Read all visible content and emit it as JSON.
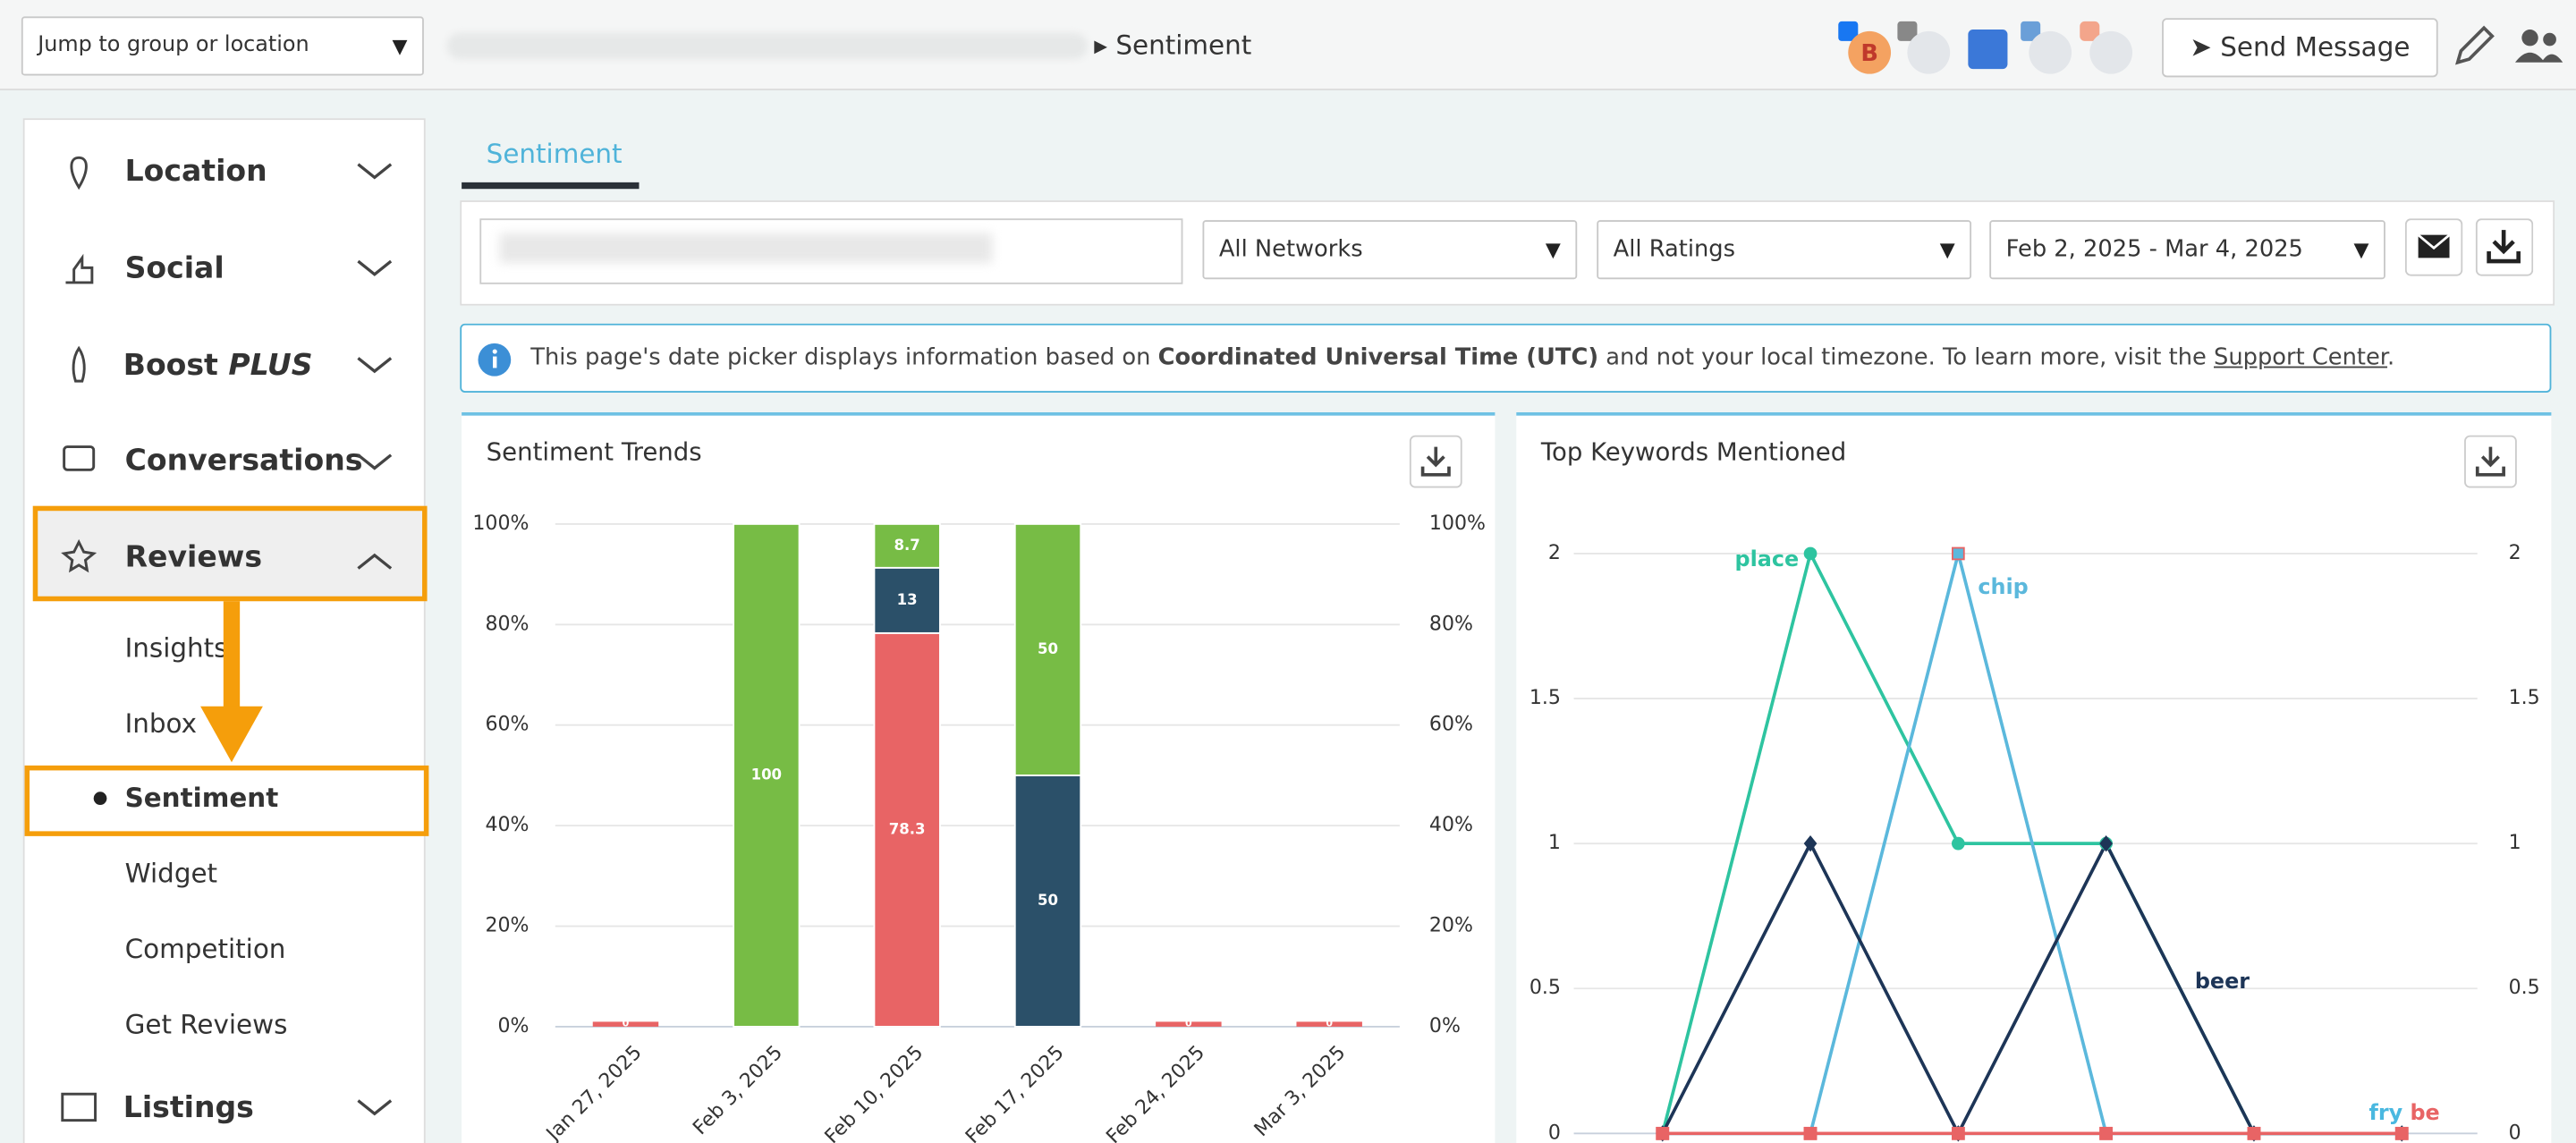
{
  "topbar": {
    "jump": "Jump to group or location",
    "breadcrumb": "Sentiment",
    "avatar": "B",
    "send": "Send Message"
  },
  "sidebar": {
    "items": [
      "Location",
      "Social",
      "Conversations",
      "Reviews",
      "Listings"
    ],
    "boost": "Boost",
    "boost_plus": "PLUS",
    "subitems": [
      "Insights",
      "Inbox",
      "Sentiment",
      "Widget",
      "Competition",
      "Get Reviews"
    ]
  },
  "tab": "Sentiment",
  "filters": {
    "networks": "All Networks",
    "ratings": "All Ratings",
    "dates": "Feb 2, 2025 - Mar 4, 2025"
  },
  "info": {
    "part1": "This page's date picker displays information based on ",
    "bold": "Coordinated Universal Time (UTC)",
    "part2": " and not your local timezone. To learn more, visit the ",
    "link": "Support Center",
    "part3": "."
  },
  "chart_data": [
    {
      "type": "bar",
      "stacked": true,
      "title": "Sentiment Trends",
      "categories": [
        "Jan 27, 2025",
        "Feb 3, 2025",
        "Feb 10, 2025",
        "Feb 17, 2025",
        "Feb 24, 2025",
        "Mar 3, 2025"
      ],
      "series": [
        {
          "color": "#e86465",
          "values": [
            0,
            0,
            78.3,
            0,
            0,
            0
          ]
        },
        {
          "color": "#2b5069",
          "values": [
            0,
            0,
            13,
            50,
            0,
            0
          ]
        },
        {
          "color": "#77bc45",
          "values": [
            0,
            100,
            8.7,
            50,
            0,
            0
          ]
        }
      ],
      "ylim": [
        0,
        100
      ],
      "yticks": [
        {
          "value": 0,
          "label": "0%"
        },
        {
          "value": 20,
          "label": "20%"
        },
        {
          "value": 40,
          "label": "40%"
        },
        {
          "value": 60,
          "label": "60%"
        },
        {
          "value": 80,
          "label": "80%"
        },
        {
          "value": 100,
          "label": "100%"
        }
      ],
      "y2lim": [
        0,
        100
      ],
      "y2ticks": [
        {
          "value": 0,
          "label": "0%"
        },
        {
          "value": 20,
          "label": "20%"
        },
        {
          "value": 40,
          "label": "40%"
        },
        {
          "value": 60,
          "label": "60%"
        },
        {
          "value": 80,
          "label": "80%"
        },
        {
          "value": 100,
          "label": "100%"
        }
      ],
      "grid": true
    },
    {
      "type": "line",
      "title": "Top Keywords Mentioned",
      "categories": [
        null,
        null,
        null,
        null,
        null,
        null
      ],
      "series": [
        {
          "name": "place",
          "color": "#2ec4a0",
          "values": [
            0,
            2,
            1,
            1,
            0,
            0
          ]
        },
        {
          "name": "chip",
          "color": "#5bb8dc",
          "values": [
            0,
            0,
            2,
            0,
            0,
            0
          ]
        },
        {
          "name": "beer",
          "color": "#1d3557",
          "values": [
            0,
            1,
            0,
            1,
            0,
            0
          ]
        },
        {
          "name": "fry",
          "color": "#4ab8e0",
          "values": [
            0,
            0,
            0,
            0,
            0,
            0
          ]
        },
        {
          "name": "be",
          "color": "#e86465",
          "values": [
            0,
            0,
            0,
            0,
            0,
            0
          ]
        }
      ],
      "ylim": [
        0,
        2
      ],
      "yticks": [
        0,
        0.5,
        1,
        1.5,
        2
      ],
      "y2lim": [
        0,
        2
      ],
      "y2ticks": [
        0,
        0.5,
        1,
        1.5,
        2
      ],
      "grid": true
    }
  ]
}
